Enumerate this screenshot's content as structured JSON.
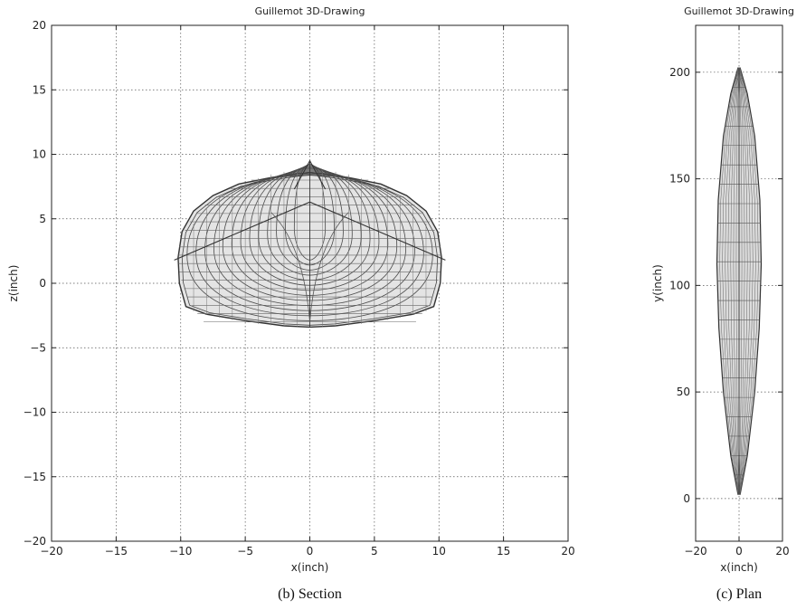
{
  "charts": [
    {
      "title": "Guillemot  3D-Drawing",
      "caption": "(b) Section",
      "xlabel": "x(inch)",
      "ylabel": "z(inch)",
      "xlim": [
        -20,
        20
      ],
      "ylim": [
        -20,
        20
      ],
      "xticks": [
        -20,
        -15,
        -10,
        -5,
        0,
        5,
        10,
        15,
        20
      ],
      "yticks": [
        -20,
        -15,
        -10,
        -5,
        0,
        5,
        10,
        15,
        20
      ],
      "grid": true
    },
    {
      "title": "Guillemot  3D-Drawing",
      "caption": "(c) Plan",
      "xlabel": "x(inch)",
      "ylabel": "y(inch)",
      "xlim": [
        -20,
        20
      ],
      "ylim": [
        -20,
        222
      ],
      "xticks": [
        -20,
        0,
        20
      ],
      "yticks": [
        0,
        50,
        100,
        150,
        200
      ],
      "grid": true
    }
  ],
  "chart_data": [
    {
      "type": "wireframe",
      "title": "Guillemot  3D-Drawing",
      "xlabel": "x(inch)",
      "ylabel": "z(inch)",
      "xlim": [
        -20,
        20
      ],
      "ylim": [
        -20,
        20
      ],
      "grid": true,
      "hull_outline": {
        "x": [
          -10.2,
          -9.9,
          -9,
          -7.5,
          -5.5,
          -3,
          -1,
          0,
          1,
          3,
          5.5,
          7.5,
          9,
          9.9,
          10.2,
          10.1,
          9.6,
          8,
          5,
          2,
          0,
          -2,
          -5,
          -8,
          -9.6,
          -10.1,
          -10.2
        ],
        "z": [
          2,
          4,
          5.6,
          6.8,
          7.7,
          8.2,
          8.5,
          8.6,
          8.5,
          8.2,
          7.7,
          6.8,
          5.6,
          4,
          2,
          0,
          -1.8,
          -2.4,
          -2.9,
          -3.3,
          -3.4,
          -3.3,
          -2.9,
          -2.4,
          -1.8,
          0,
          2
        ]
      },
      "bow_peak": {
        "x": 0,
        "z": 9.5
      },
      "chine": {
        "x": [
          -10.5,
          0,
          10.5
        ],
        "z": [
          1.8,
          6.3,
          1.8
        ]
      },
      "stations": 14,
      "waterlines": 18
    },
    {
      "type": "wireframe",
      "title": "Guillemot  3D-Drawing",
      "xlabel": "x(inch)",
      "ylabel": "y(inch)",
      "xlim": [
        -20,
        20
      ],
      "ylim": [
        -20,
        222
      ],
      "grid": true,
      "hull_outline": {
        "y": [
          2,
          20,
          50,
          80,
          110,
          140,
          170,
          190,
          202
        ],
        "half_beam": [
          0.5,
          3.8,
          7.2,
          9.3,
          10.2,
          9.6,
          7.2,
          3.8,
          0.5
        ]
      },
      "stations": 22,
      "longitudinals": 8
    }
  ]
}
